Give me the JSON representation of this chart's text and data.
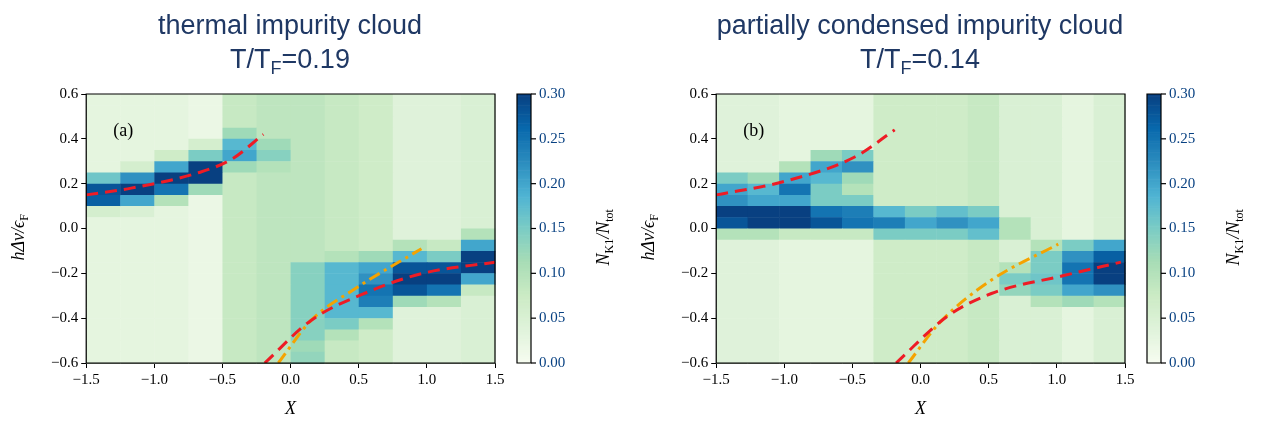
{
  "chart_data": [
    {
      "type": "heatmap",
      "title": "thermal impurity cloud",
      "subtitle": "T/T$_{F}$=0.19",
      "xlabel": "X",
      "ylabel": "hΔν/ϵ$_{F}$",
      "clabel": "N$_{K1}$/N$_{tot}$",
      "annotations": [
        "(a)"
      ],
      "x": [
        -1.375,
        -1.125,
        -0.875,
        -0.625,
        -0.375,
        -0.125,
        0.125,
        0.375,
        0.625,
        0.875,
        1.125,
        1.375
      ],
      "y": [
        0.575,
        0.525,
        0.475,
        0.425,
        0.375,
        0.325,
        0.275,
        0.225,
        0.175,
        0.125,
        0.075,
        0.025,
        -0.025,
        -0.075,
        -0.125,
        -0.175,
        -0.225,
        -0.275,
        -0.325,
        -0.375,
        -0.425,
        -0.475,
        -0.525,
        -0.575
      ],
      "cells": [
        [
          0.03,
          0.03,
          0.03,
          0.02,
          0.08,
          0.09,
          0.09,
          0.08,
          0.07,
          0.04,
          0.04,
          0.05
        ],
        [
          0.03,
          0.03,
          0.03,
          0.02,
          0.08,
          0.09,
          0.09,
          0.08,
          0.07,
          0.04,
          0.04,
          0.05
        ],
        [
          0.03,
          0.03,
          0.03,
          0.02,
          0.08,
          0.09,
          0.09,
          0.08,
          0.07,
          0.04,
          0.04,
          0.05
        ],
        [
          0.03,
          0.03,
          0.03,
          0.02,
          0.12,
          0.09,
          0.09,
          0.08,
          0.07,
          0.04,
          0.04,
          0.05
        ],
        [
          0.03,
          0.03,
          0.03,
          0.06,
          0.18,
          0.12,
          0.09,
          0.08,
          0.07,
          0.04,
          0.04,
          0.05
        ],
        [
          0.03,
          0.03,
          0.07,
          0.15,
          0.2,
          0.14,
          0.09,
          0.08,
          0.07,
          0.04,
          0.04,
          0.05
        ],
        [
          0.03,
          0.06,
          0.2,
          0.3,
          0.12,
          0.1,
          0.09,
          0.08,
          0.07,
          0.04,
          0.04,
          0.05
        ],
        [
          0.16,
          0.22,
          0.3,
          0.3,
          0.08,
          0.09,
          0.09,
          0.08,
          0.07,
          0.04,
          0.04,
          0.05
        ],
        [
          0.28,
          0.3,
          0.25,
          0.12,
          0.08,
          0.09,
          0.09,
          0.08,
          0.07,
          0.04,
          0.04,
          0.05
        ],
        [
          0.27,
          0.2,
          0.1,
          0.02,
          0.08,
          0.09,
          0.09,
          0.08,
          0.07,
          0.04,
          0.04,
          0.05
        ],
        [
          0.06,
          0.05,
          0.03,
          0.02,
          0.08,
          0.09,
          0.09,
          0.08,
          0.07,
          0.04,
          0.04,
          0.05
        ],
        [
          0.03,
          0.03,
          0.03,
          0.02,
          0.08,
          0.09,
          0.09,
          0.08,
          0.07,
          0.04,
          0.04,
          0.05
        ],
        [
          0.03,
          0.03,
          0.03,
          0.02,
          0.08,
          0.09,
          0.09,
          0.08,
          0.07,
          0.04,
          0.04,
          0.1
        ],
        [
          0.03,
          0.03,
          0.03,
          0.02,
          0.08,
          0.09,
          0.09,
          0.08,
          0.07,
          0.1,
          0.08,
          0.2
        ],
        [
          0.03,
          0.03,
          0.03,
          0.02,
          0.08,
          0.09,
          0.09,
          0.1,
          0.12,
          0.18,
          0.15,
          0.3
        ],
        [
          0.03,
          0.03,
          0.03,
          0.02,
          0.08,
          0.09,
          0.14,
          0.18,
          0.2,
          0.28,
          0.28,
          0.3
        ],
        [
          0.03,
          0.03,
          0.03,
          0.02,
          0.08,
          0.09,
          0.14,
          0.18,
          0.22,
          0.3,
          0.3,
          0.2
        ],
        [
          0.03,
          0.03,
          0.03,
          0.02,
          0.08,
          0.09,
          0.14,
          0.18,
          0.25,
          0.28,
          0.25,
          0.08
        ],
        [
          0.03,
          0.03,
          0.03,
          0.02,
          0.08,
          0.09,
          0.14,
          0.18,
          0.24,
          0.12,
          0.1,
          0.05
        ],
        [
          0.03,
          0.03,
          0.03,
          0.02,
          0.08,
          0.09,
          0.14,
          0.18,
          0.18,
          0.04,
          0.04,
          0.05
        ],
        [
          0.03,
          0.03,
          0.03,
          0.02,
          0.08,
          0.09,
          0.14,
          0.15,
          0.1,
          0.04,
          0.04,
          0.05
        ],
        [
          0.03,
          0.03,
          0.03,
          0.02,
          0.08,
          0.09,
          0.14,
          0.1,
          0.07,
          0.04,
          0.04,
          0.05
        ],
        [
          0.03,
          0.03,
          0.03,
          0.02,
          0.08,
          0.09,
          0.12,
          0.08,
          0.07,
          0.04,
          0.04,
          0.05
        ],
        [
          0.03,
          0.03,
          0.03,
          0.02,
          0.08,
          0.09,
          0.13,
          0.08,
          0.07,
          0.04,
          0.04,
          0.05
        ]
      ],
      "clim": [
        0,
        0.3
      ],
      "cticks": [
        {
          "value": 0,
          "label": "0.00"
        },
        {
          "value": 0.05,
          "label": "0.05"
        },
        {
          "value": 0.1,
          "label": "0.10"
        },
        {
          "value": 0.15,
          "label": "0.15"
        },
        {
          "value": 0.2,
          "label": "0.20"
        },
        {
          "value": 0.25,
          "label": "0.25"
        },
        {
          "value": 0.3,
          "label": "0.30"
        }
      ],
      "xlim": [
        -1.5,
        1.5
      ],
      "ylim": [
        -0.6,
        0.6
      ],
      "xticks": [
        {
          "value": -1.5,
          "label": "−1.5"
        },
        {
          "value": -1,
          "label": "−1.0"
        },
        {
          "value": -0.5,
          "label": "−0.5"
        },
        {
          "value": 0,
          "label": "0.0"
        },
        {
          "value": 0.5,
          "label": "0.5"
        },
        {
          "value": 1,
          "label": "1.0"
        },
        {
          "value": 1.5,
          "label": "1.5"
        }
      ],
      "yticks": [
        {
          "value": -0.6,
          "label": "−0.6"
        },
        {
          "value": -0.4,
          "label": "−0.4"
        },
        {
          "value": -0.2,
          "label": "−0.2"
        },
        {
          "value": 0,
          "label": "0.0"
        },
        {
          "value": 0.2,
          "label": "0.2"
        },
        {
          "value": 0.4,
          "label": "0.4"
        },
        {
          "value": 0.6,
          "label": "0.6"
        }
      ],
      "series": [
        {
          "type": "line",
          "color": "#ee1c25",
          "line_style": "dashed",
          "x": [
            -1.5,
            -1.17,
            -0.67,
            -0.43,
            -0.2
          ],
          "values": [
            0.15,
            0.18,
            0.25,
            0.31,
            0.42
          ]
        },
        {
          "type": "line",
          "color": "#ee1c25",
          "line_style": "dashed",
          "x": [
            -0.19,
            0.15,
            0.58,
            0.97,
            1.5
          ],
          "values": [
            -0.6,
            -0.41,
            -0.28,
            -0.2,
            -0.15
          ]
        },
        {
          "type": "line",
          "color": "#f5a300",
          "line_style": "dashdot",
          "x": [
            -0.09,
            0.15,
            0.47,
            0.96
          ],
          "values": [
            -0.6,
            -0.41,
            -0.27,
            -0.09
          ]
        }
      ]
    },
    {
      "type": "heatmap",
      "title": "partially condensed impurity cloud",
      "subtitle": "T/T$_{F}$=0.14",
      "xlabel": "X",
      "ylabel": "hΔν/ϵ$_{F}$",
      "clabel": "N$_{K1}$/N$_{tot}$",
      "annotations": [
        "(b)"
      ],
      "x": [
        -1.385,
        -1.154,
        -0.923,
        -0.692,
        -0.462,
        -0.231,
        0,
        0.231,
        0.462,
        0.692,
        0.923,
        1.154,
        1.385
      ],
      "y": [
        0.575,
        0.525,
        0.475,
        0.425,
        0.375,
        0.325,
        0.275,
        0.225,
        0.175,
        0.125,
        0.075,
        0.025,
        -0.025,
        -0.075,
        -0.125,
        -0.175,
        -0.225,
        -0.275,
        -0.325,
        -0.375,
        -0.425,
        -0.475,
        -0.525,
        -0.575
      ],
      "cells": [
        [
          0.04,
          0.04,
          0.03,
          0.03,
          0.03,
          0.07,
          0.07,
          0.07,
          0.08,
          0.05,
          0.05,
          0.03,
          0.05
        ],
        [
          0.04,
          0.04,
          0.03,
          0.03,
          0.03,
          0.07,
          0.07,
          0.07,
          0.08,
          0.05,
          0.05,
          0.03,
          0.05
        ],
        [
          0.04,
          0.04,
          0.03,
          0.03,
          0.03,
          0.07,
          0.07,
          0.07,
          0.08,
          0.05,
          0.05,
          0.03,
          0.05
        ],
        [
          0.04,
          0.04,
          0.03,
          0.03,
          0.03,
          0.07,
          0.07,
          0.07,
          0.08,
          0.05,
          0.05,
          0.03,
          0.05
        ],
        [
          0.04,
          0.04,
          0.03,
          0.03,
          0.03,
          0.07,
          0.07,
          0.07,
          0.08,
          0.05,
          0.05,
          0.03,
          0.05
        ],
        [
          0.04,
          0.04,
          0.03,
          0.12,
          0.15,
          0.07,
          0.07,
          0.07,
          0.08,
          0.05,
          0.05,
          0.03,
          0.05
        ],
        [
          0.04,
          0.04,
          0.1,
          0.2,
          0.22,
          0.07,
          0.07,
          0.07,
          0.08,
          0.05,
          0.05,
          0.03,
          0.05
        ],
        [
          0.15,
          0.12,
          0.2,
          0.18,
          0.12,
          0.07,
          0.07,
          0.07,
          0.08,
          0.05,
          0.05,
          0.03,
          0.05
        ],
        [
          0.2,
          0.18,
          0.25,
          0.15,
          0.1,
          0.07,
          0.07,
          0.07,
          0.08,
          0.05,
          0.05,
          0.03,
          0.05
        ],
        [
          0.22,
          0.2,
          0.2,
          0.15,
          0.15,
          0.07,
          0.07,
          0.07,
          0.08,
          0.05,
          0.05,
          0.03,
          0.05
        ],
        [
          0.3,
          0.3,
          0.3,
          0.25,
          0.24,
          0.18,
          0.15,
          0.17,
          0.15,
          0.05,
          0.05,
          0.03,
          0.05
        ],
        [
          0.28,
          0.3,
          0.3,
          0.28,
          0.25,
          0.24,
          0.2,
          0.22,
          0.2,
          0.1,
          0.05,
          0.03,
          0.05
        ],
        [
          0.1,
          0.1,
          0.08,
          0.08,
          0.08,
          0.15,
          0.15,
          0.15,
          0.17,
          0.1,
          0.05,
          0.03,
          0.05
        ],
        [
          0.04,
          0.04,
          0.03,
          0.03,
          0.03,
          0.07,
          0.07,
          0.07,
          0.08,
          0.05,
          0.1,
          0.15,
          0.2
        ],
        [
          0.04,
          0.04,
          0.03,
          0.03,
          0.03,
          0.07,
          0.07,
          0.07,
          0.08,
          0.05,
          0.15,
          0.22,
          0.27
        ],
        [
          0.04,
          0.04,
          0.03,
          0.03,
          0.03,
          0.07,
          0.07,
          0.07,
          0.08,
          0.1,
          0.15,
          0.25,
          0.3
        ],
        [
          0.04,
          0.04,
          0.03,
          0.03,
          0.03,
          0.07,
          0.07,
          0.07,
          0.08,
          0.15,
          0.16,
          0.25,
          0.3
        ],
        [
          0.04,
          0.04,
          0.03,
          0.03,
          0.03,
          0.07,
          0.07,
          0.07,
          0.08,
          0.13,
          0.15,
          0.2,
          0.22
        ],
        [
          0.04,
          0.04,
          0.03,
          0.03,
          0.03,
          0.07,
          0.07,
          0.07,
          0.08,
          0.05,
          0.1,
          0.12,
          0.1
        ],
        [
          0.04,
          0.04,
          0.03,
          0.03,
          0.03,
          0.07,
          0.07,
          0.07,
          0.08,
          0.05,
          0.05,
          0.03,
          0.05
        ],
        [
          0.04,
          0.04,
          0.03,
          0.03,
          0.03,
          0.07,
          0.07,
          0.07,
          0.08,
          0.05,
          0.05,
          0.03,
          0.05
        ],
        [
          0.04,
          0.04,
          0.03,
          0.03,
          0.03,
          0.07,
          0.07,
          0.07,
          0.08,
          0.05,
          0.05,
          0.03,
          0.05
        ],
        [
          0.04,
          0.04,
          0.03,
          0.03,
          0.03,
          0.07,
          0.07,
          0.07,
          0.08,
          0.05,
          0.05,
          0.03,
          0.05
        ],
        [
          0.04,
          0.04,
          0.03,
          0.03,
          0.03,
          0.07,
          0.07,
          0.07,
          0.08,
          0.05,
          0.05,
          0.03,
          0.05
        ]
      ],
      "clim": [
        0,
        0.3
      ],
      "cticks": [
        {
          "value": 0,
          "label": "0.00"
        },
        {
          "value": 0.05,
          "label": "0.05"
        },
        {
          "value": 0.1,
          "label": "0.10"
        },
        {
          "value": 0.15,
          "label": "0.15"
        },
        {
          "value": 0.2,
          "label": "0.20"
        },
        {
          "value": 0.25,
          "label": "0.25"
        },
        {
          "value": 0.3,
          "label": "0.30"
        }
      ],
      "xlim": [
        -1.5,
        1.5
      ],
      "ylim": [
        -0.6,
        0.6
      ],
      "xticks": [
        {
          "value": -1.5,
          "label": "−1.5"
        },
        {
          "value": -1,
          "label": "−1.0"
        },
        {
          "value": -0.5,
          "label": "−0.5"
        },
        {
          "value": 0,
          "label": "0.0"
        },
        {
          "value": 0.5,
          "label": "0.5"
        },
        {
          "value": 1,
          "label": "1.0"
        },
        {
          "value": 1.5,
          "label": "1.5"
        }
      ],
      "yticks": [
        {
          "value": -0.6,
          "label": "−0.6"
        },
        {
          "value": -0.4,
          "label": "−0.4"
        },
        {
          "value": -0.2,
          "label": "−0.2"
        },
        {
          "value": 0,
          "label": "0.0"
        },
        {
          "value": 0.2,
          "label": "0.2"
        },
        {
          "value": 0.4,
          "label": "0.4"
        },
        {
          "value": 0.6,
          "label": "0.6"
        }
      ],
      "series": [
        {
          "type": "line",
          "color": "#ee1c25",
          "line_style": "dashed",
          "x": [
            -1.5,
            -1.0,
            -0.48,
            -0.19
          ],
          "values": [
            0.15,
            0.21,
            0.32,
            0.44
          ]
        },
        {
          "type": "line",
          "color": "#ee1c25",
          "line_style": "dashed",
          "x": [
            -0.18,
            0.2,
            0.52,
            1.05,
            1.47
          ],
          "values": [
            -0.6,
            -0.39,
            -0.29,
            -0.21,
            -0.15
          ]
        },
        {
          "type": "line",
          "color": "#f5a300",
          "line_style": "dashdot",
          "x": [
            -0.09,
            0.14,
            0.52,
            1.01
          ],
          "values": [
            -0.6,
            -0.42,
            -0.23,
            -0.07
          ]
        }
      ]
    }
  ]
}
